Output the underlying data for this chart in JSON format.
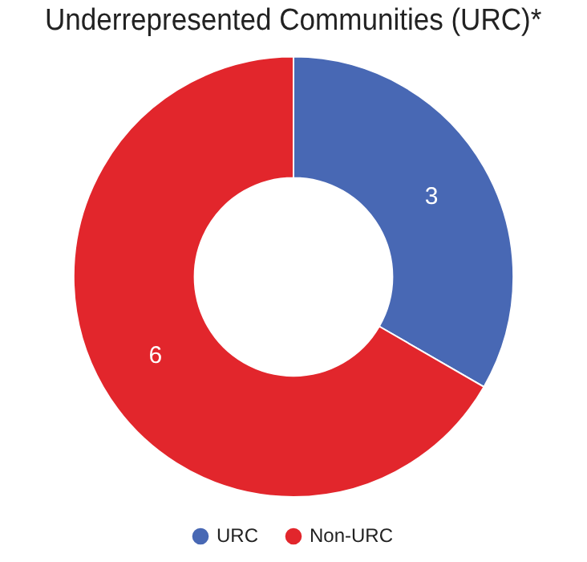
{
  "chart_data": {
    "type": "donut",
    "title": "Underrepresented Communities (URC)*",
    "categories": [
      "URC",
      "Non-URC"
    ],
    "values": [
      3,
      6
    ],
    "colors": [
      "#4868b4",
      "#e2262c"
    ],
    "data_labels": true,
    "legend": "bottom"
  }
}
